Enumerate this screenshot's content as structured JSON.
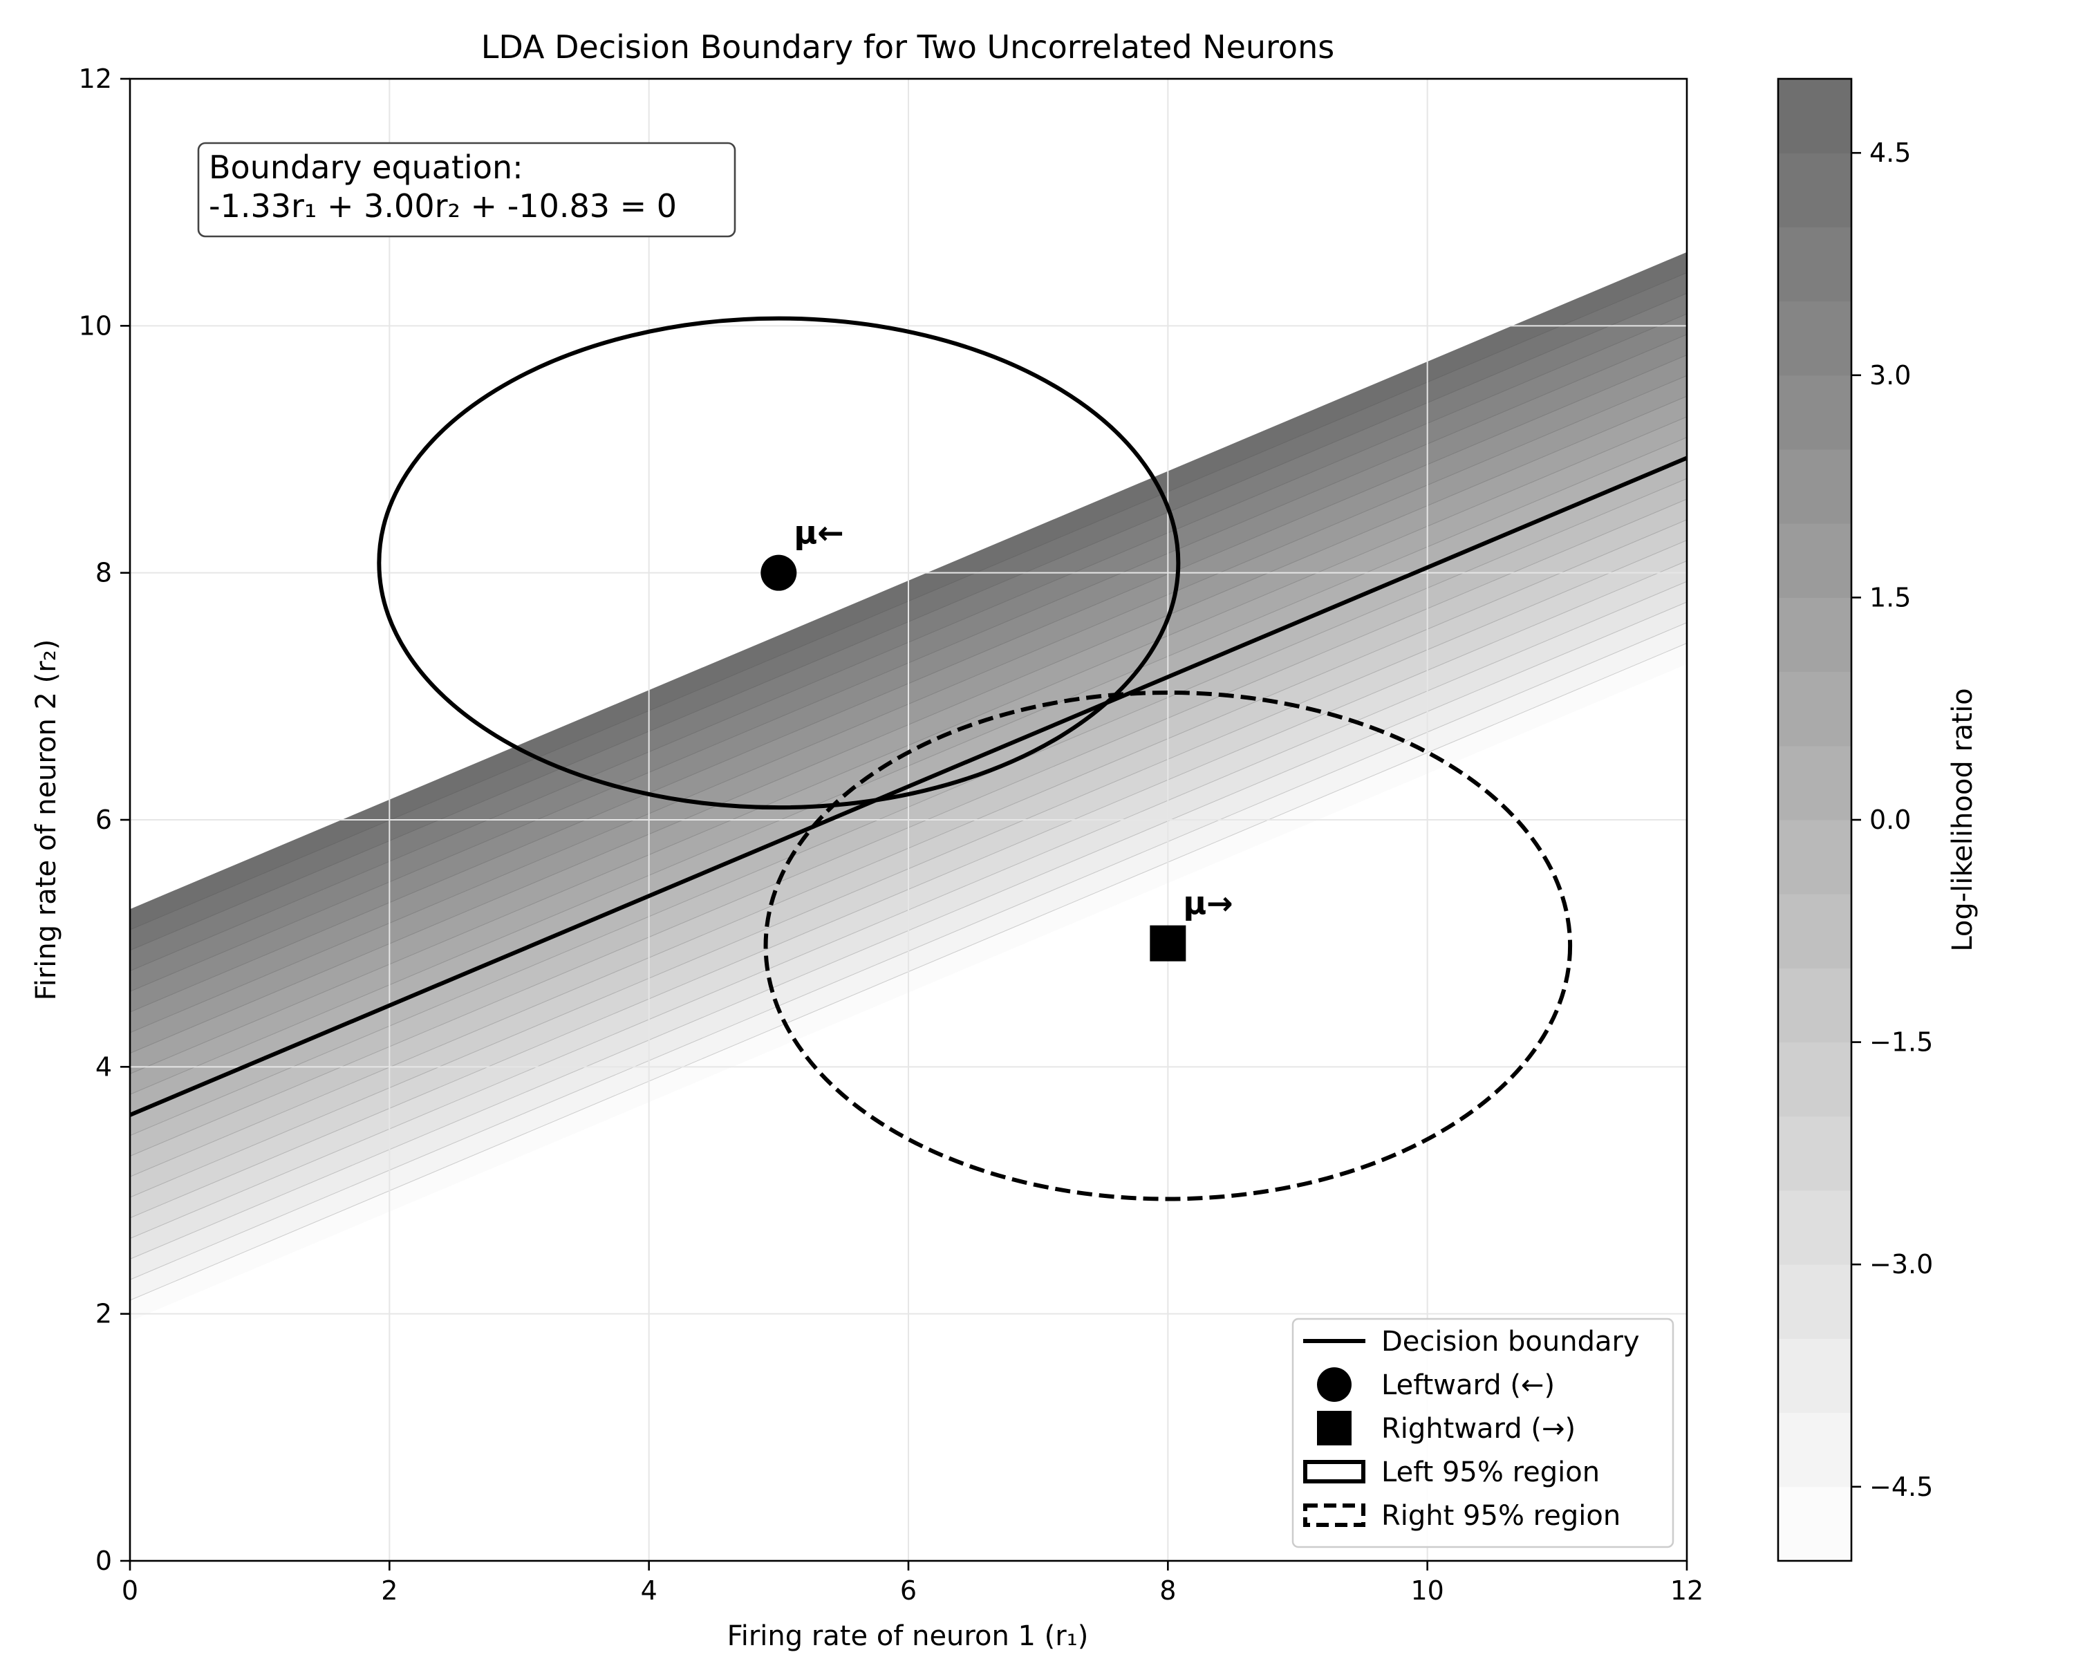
{
  "chart_data": {
    "type": "contour",
    "title": "LDA Decision Boundary for Two Uncorrelated Neurons",
    "xlabel": "Firing rate of neuron 1 (r₁)",
    "ylabel": "Firing rate of neuron 2 (r₂)",
    "xlim": [
      0,
      12
    ],
    "ylim": [
      0,
      12
    ],
    "xticks": [
      0,
      2,
      4,
      6,
      8,
      10,
      12
    ],
    "yticks": [
      0,
      2,
      4,
      6,
      8,
      10,
      12
    ],
    "grid": true,
    "annotation": {
      "line1": "Boundary equation:",
      "line2": "-1.33r₁ + 3.00r₂ + -10.83 = 0"
    },
    "boundary": {
      "a": -1.33,
      "b": 3.0,
      "c": -10.83
    },
    "llr_clip": [
      -5,
      5
    ],
    "contour_levels": 20,
    "means": [
      {
        "name": "Leftward (←)",
        "label": "μ←",
        "x": 5,
        "y": 8,
        "marker": "circle"
      },
      {
        "name": "Rightward (→)",
        "label": "μ→",
        "x": 8,
        "y": 5,
        "marker": "square"
      }
    ],
    "regions": [
      {
        "name": "Left 95% region",
        "cx": 5.0,
        "cy": 8.08,
        "rx": 3.08,
        "ry": 1.98,
        "style": "solid"
      },
      {
        "name": "Right 95% region",
        "cx": 8.0,
        "cy": 4.98,
        "rx": 3.1,
        "ry": 2.05,
        "style": "dashed"
      }
    ],
    "legend": {
      "position": "lower right",
      "entries": [
        "Decision boundary",
        "Leftward (←)",
        "Rightward (→)",
        "Left 95% region",
        "Right 95% region"
      ]
    },
    "colorbar": {
      "label": "Log-likelihood ratio",
      "range": [
        -5,
        5
      ],
      "ticks": [
        "−4.5",
        "−3.0",
        "−1.5",
        "0.0",
        "1.5",
        "3.0",
        "4.5"
      ],
      "tick_values": [
        -4.5,
        -3.0,
        -1.5,
        0.0,
        1.5,
        3.0,
        4.5
      ]
    },
    "colors": {
      "line": "#000000",
      "shade_low": "#ffffff",
      "shade_high": "#6b6b6b",
      "grid": "#e6e6e6"
    }
  }
}
